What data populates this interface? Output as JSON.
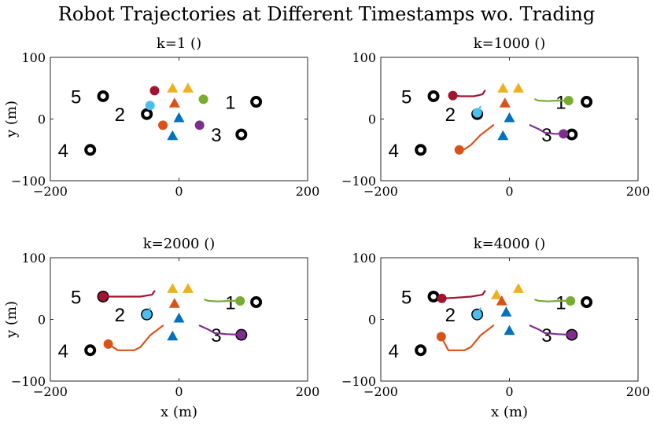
{
  "chart_data": {
    "type": "scatter",
    "title": "Robot Trajectories at Different Timestamps wo. Trading",
    "xlabel": "x (m)",
    "ylabel": "y (m)",
    "xlim": [
      -200,
      200
    ],
    "ylim": [
      -100,
      100
    ],
    "xticks": [
      -200,
      0,
      200
    ],
    "yticks": [
      -100,
      0,
      100
    ],
    "tick_labels": {
      "x": [
        "−200",
        "0",
        "200"
      ],
      "y": [
        "−100",
        "0",
        "100"
      ]
    },
    "colors": {
      "1": "#77ac30",
      "2": "#4dbeee",
      "3": "#7e2f8e",
      "4": "#d95319",
      "5": "#a2142f",
      "triangle_blue": "#0072bd",
      "triangle_orange": "#d95319",
      "triangle_yellow": "#edb120"
    },
    "goals": [
      {
        "id": "1",
        "label": "1",
        "x": 120,
        "y": 28,
        "label_x": 80,
        "label_y": 28
      },
      {
        "id": "2",
        "label": "2",
        "x": -50,
        "y": 8,
        "label_x": -92,
        "label_y": 8
      },
      {
        "id": "3",
        "label": "3",
        "x": 97,
        "y": -25,
        "label_x": 58,
        "label_y": -25
      },
      {
        "id": "4",
        "label": "4",
        "x": -138,
        "y": -50,
        "label_x": -180,
        "label_y": -50
      },
      {
        "id": "5",
        "label": "5",
        "x": -118,
        "y": 37,
        "label_x": -160,
        "label_y": 37
      }
    ],
    "panels": [
      {
        "title": "k=1 ()",
        "robots": [
          {
            "id": "1",
            "x": 38,
            "y": 32,
            "trail": []
          },
          {
            "id": "2",
            "x": -45,
            "y": 22,
            "trail": []
          },
          {
            "id": "3",
            "x": 32,
            "y": -10,
            "trail": []
          },
          {
            "id": "4",
            "x": -25,
            "y": -10,
            "trail": []
          },
          {
            "id": "5",
            "x": -38,
            "y": 46,
            "trail": []
          }
        ],
        "triangles": [
          {
            "color": "triangle_yellow",
            "x": -10,
            "y": 50
          },
          {
            "color": "triangle_yellow",
            "x": 14,
            "y": 50
          },
          {
            "color": "triangle_orange",
            "x": -7,
            "y": 26
          },
          {
            "color": "triangle_blue",
            "x": 0,
            "y": 2
          },
          {
            "color": "triangle_blue",
            "x": -10,
            "y": -27
          }
        ]
      },
      {
        "title": "k=1000 ()",
        "robots": [
          {
            "id": "1",
            "x": 92,
            "y": 30,
            "trail": [
              [
                40,
                32
              ],
              [
                45,
                30
              ],
              [
                60,
                29
              ],
              [
                75,
                30
              ],
              [
                92,
                30
              ]
            ]
          },
          {
            "id": "2",
            "x": -50,
            "y": 10,
            "trail": [
              [
                -45,
                20
              ],
              [
                -48,
                14
              ],
              [
                -50,
                10
              ]
            ]
          },
          {
            "id": "3",
            "x": 84,
            "y": -24,
            "trail": [
              [
                32,
                -10
              ],
              [
                45,
                -16
              ],
              [
                55,
                -22
              ],
              [
                70,
                -24
              ],
              [
                84,
                -24
              ]
            ]
          },
          {
            "id": "4",
            "x": -78,
            "y": -50,
            "trail": [
              [
                -25,
                -10
              ],
              [
                -45,
                -26
              ],
              [
                -60,
                -42
              ],
              [
                -70,
                -49
              ],
              [
                -78,
                -50
              ]
            ]
          },
          {
            "id": "5",
            "x": -88,
            "y": 38,
            "trail": [
              [
                -38,
                46
              ],
              [
                -42,
                40
              ],
              [
                -55,
                37
              ],
              [
                -75,
                37
              ],
              [
                -88,
                38
              ]
            ]
          }
        ],
        "triangles": [
          {
            "color": "triangle_yellow",
            "x": -10,
            "y": 50
          },
          {
            "color": "triangle_yellow",
            "x": 14,
            "y": 50
          },
          {
            "color": "triangle_orange",
            "x": -7,
            "y": 26
          },
          {
            "color": "triangle_blue",
            "x": 0,
            "y": 2
          },
          {
            "color": "triangle_blue",
            "x": -10,
            "y": -27
          }
        ]
      },
      {
        "title": "k=2000 ()",
        "robots": [
          {
            "id": "1",
            "x": 95,
            "y": 30,
            "trail": [
              [
                40,
                32
              ],
              [
                45,
                30
              ],
              [
                60,
                29
              ],
              [
                80,
                30
              ],
              [
                95,
                30
              ]
            ]
          },
          {
            "id": "2",
            "x": -50,
            "y": 8,
            "trail": [
              [
                -45,
                18
              ],
              [
                -48,
                12
              ],
              [
                -50,
                8
              ]
            ]
          },
          {
            "id": "3",
            "x": 97,
            "y": -25,
            "trail": [
              [
                32,
                -10
              ],
              [
                45,
                -16
              ],
              [
                55,
                -22
              ],
              [
                75,
                -24
              ],
              [
                97,
                -25
              ]
            ]
          },
          {
            "id": "4",
            "x": -110,
            "y": -40,
            "trail": [
              [
                -25,
                -10
              ],
              [
                -45,
                -26
              ],
              [
                -60,
                -45
              ],
              [
                -70,
                -50
              ],
              [
                -95,
                -50
              ],
              [
                -110,
                -40
              ]
            ]
          },
          {
            "id": "5",
            "x": -118,
            "y": 37,
            "trail": [
              [
                -38,
                46
              ],
              [
                -42,
                40
              ],
              [
                -60,
                37
              ],
              [
                -90,
                37
              ],
              [
                -118,
                37
              ]
            ]
          }
        ],
        "triangles": [
          {
            "color": "triangle_yellow",
            "x": -10,
            "y": 50
          },
          {
            "color": "triangle_yellow",
            "x": 14,
            "y": 50
          },
          {
            "color": "triangle_orange",
            "x": -7,
            "y": 26
          },
          {
            "color": "triangle_blue",
            "x": 0,
            "y": 2
          },
          {
            "color": "triangle_blue",
            "x": -10,
            "y": -27
          }
        ]
      },
      {
        "title": "k=4000 ()",
        "robots": [
          {
            "id": "1",
            "x": 95,
            "y": 30,
            "trail": [
              [
                40,
                32
              ],
              [
                45,
                30
              ],
              [
                60,
                29
              ],
              [
                80,
                30
              ],
              [
                95,
                30
              ]
            ]
          },
          {
            "id": "2",
            "x": -50,
            "y": 8,
            "trail": [
              [
                -45,
                18
              ],
              [
                -48,
                12
              ],
              [
                -50,
                8
              ]
            ]
          },
          {
            "id": "3",
            "x": 97,
            "y": -25,
            "trail": [
              [
                32,
                -10
              ],
              [
                45,
                -16
              ],
              [
                55,
                -22
              ],
              [
                75,
                -24
              ],
              [
                97,
                -25
              ]
            ]
          },
          {
            "id": "4",
            "x": -106,
            "y": -28,
            "trail": [
              [
                -25,
                -10
              ],
              [
                -45,
                -26
              ],
              [
                -60,
                -45
              ],
              [
                -70,
                -50
              ],
              [
                -95,
                -50
              ],
              [
                -106,
                -28
              ]
            ]
          },
          {
            "id": "5",
            "x": -105,
            "y": 34,
            "trail": [
              [
                -38,
                46
              ],
              [
                -42,
                40
              ],
              [
                -60,
                37
              ],
              [
                -85,
                35
              ],
              [
                -105,
                34
              ]
            ]
          }
        ],
        "triangles": [
          {
            "color": "triangle_yellow",
            "x": -20,
            "y": 40
          },
          {
            "color": "triangle_yellow",
            "x": 14,
            "y": 50
          },
          {
            "color": "triangle_orange",
            "x": -12,
            "y": 30
          },
          {
            "color": "triangle_blue",
            "x": -5,
            "y": 12
          },
          {
            "color": "triangle_blue",
            "x": 0,
            "y": -18
          }
        ]
      }
    ]
  }
}
